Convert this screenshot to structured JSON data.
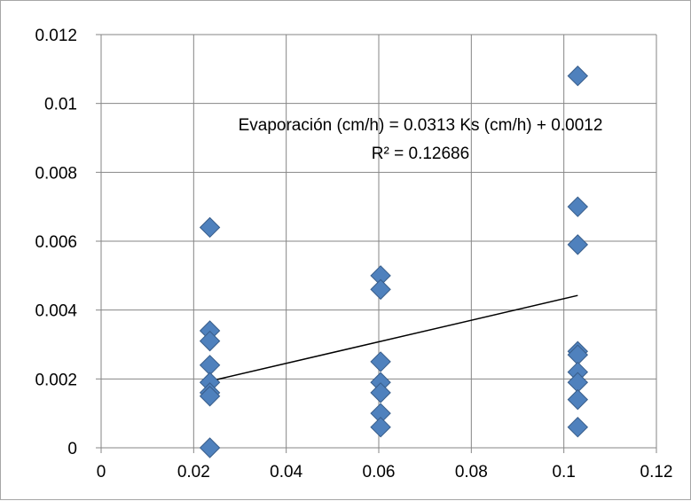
{
  "chart_data": {
    "type": "scatter",
    "xlim": [
      0,
      0.12
    ],
    "ylim": [
      0,
      0.012
    ],
    "x_ticks": [
      "0",
      "0.02",
      "0.04",
      "0.06",
      "0.08",
      "0.1",
      "0.12"
    ],
    "y_ticks": [
      "0",
      "0.002",
      "0.004",
      "0.006",
      "0.008",
      "0.01",
      "0.012"
    ],
    "grid": true,
    "legend": "none",
    "marker_color": "#4F81BD",
    "marker_edge_color": "#385D8A",
    "trendline_color": "#000000",
    "series": [
      {
        "points": [
          [
            0.0235,
            0.0064
          ],
          [
            0.0235,
            0.0034
          ],
          [
            0.0235,
            0.0031
          ],
          [
            0.0235,
            0.0024
          ],
          [
            0.0235,
            0.0019
          ],
          [
            0.0235,
            0.0016
          ],
          [
            0.0235,
            0.0015
          ],
          [
            0.0235,
            0.0
          ],
          [
            0.0604,
            0.005
          ],
          [
            0.0604,
            0.0046
          ],
          [
            0.0604,
            0.0025
          ],
          [
            0.0604,
            0.0019
          ],
          [
            0.0604,
            0.0016
          ],
          [
            0.0604,
            0.001
          ],
          [
            0.0604,
            0.0006
          ],
          [
            0.103,
            0.0108
          ],
          [
            0.103,
            0.007
          ],
          [
            0.103,
            0.0059
          ],
          [
            0.103,
            0.0028
          ],
          [
            0.103,
            0.0027
          ],
          [
            0.103,
            0.0022
          ],
          [
            0.103,
            0.0019
          ],
          [
            0.103,
            0.0014
          ],
          [
            0.103,
            0.0006
          ]
        ]
      }
    ],
    "trendline": {
      "slope": 0.0313,
      "intercept": 0.0012,
      "x_range": [
        0.0235,
        0.103
      ]
    },
    "annotations": {
      "equation": "Evaporación (cm/h) = 0.0313 Ks (cm/h) + 0.0012",
      "r_squared": "R² = 0.12686"
    }
  }
}
